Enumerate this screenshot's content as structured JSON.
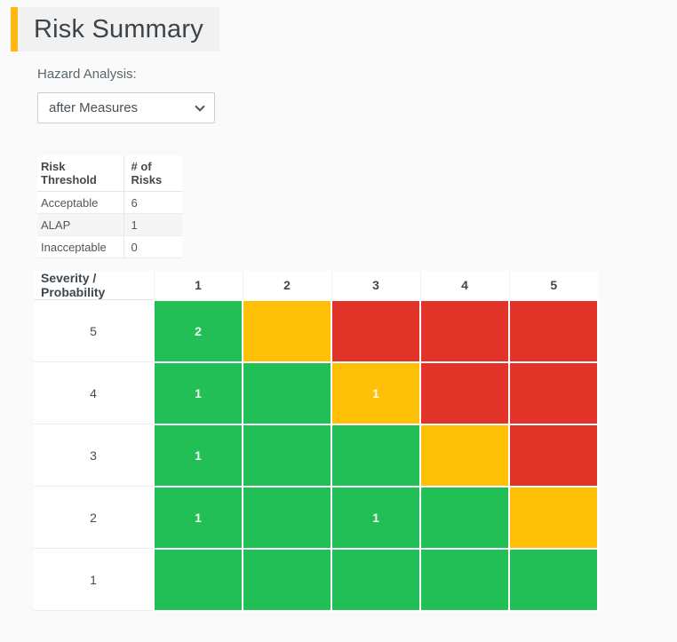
{
  "page": {
    "title": "Risk Summary",
    "accent_color": "#fdb813",
    "background_color": "#fafafa"
  },
  "hazard_analysis": {
    "label": "Hazard Analysis:",
    "selected_option": "after Measures"
  },
  "threshold_table": {
    "columns": {
      "threshold": "Risk Threshold",
      "count": "# of Risks"
    },
    "rows": [
      {
        "label": "Acceptable",
        "count": "6"
      },
      {
        "label": "ALAP",
        "count": "1"
      },
      {
        "label": "Inacceptable",
        "count": "0"
      }
    ]
  },
  "risk_matrix": {
    "corner_label": "Severity / Probability",
    "probability_labels": [
      "1",
      "2",
      "3",
      "4",
      "5"
    ],
    "severity_labels": [
      "5",
      "4",
      "3",
      "2",
      "1"
    ],
    "colors": {
      "green": "#21bf55",
      "yellow": "#ffc107",
      "red": "#e23328"
    },
    "cells": [
      [
        {
          "level": "green",
          "count": "2"
        },
        {
          "level": "yellow",
          "count": ""
        },
        {
          "level": "red",
          "count": ""
        },
        {
          "level": "red",
          "count": ""
        },
        {
          "level": "red",
          "count": ""
        }
      ],
      [
        {
          "level": "green",
          "count": "1"
        },
        {
          "level": "green",
          "count": ""
        },
        {
          "level": "yellow",
          "count": "1"
        },
        {
          "level": "red",
          "count": ""
        },
        {
          "level": "red",
          "count": ""
        }
      ],
      [
        {
          "level": "green",
          "count": "1"
        },
        {
          "level": "green",
          "count": ""
        },
        {
          "level": "green",
          "count": ""
        },
        {
          "level": "yellow",
          "count": ""
        },
        {
          "level": "red",
          "count": ""
        }
      ],
      [
        {
          "level": "green",
          "count": "1"
        },
        {
          "level": "green",
          "count": ""
        },
        {
          "level": "green",
          "count": "1"
        },
        {
          "level": "green",
          "count": ""
        },
        {
          "level": "yellow",
          "count": ""
        }
      ],
      [
        {
          "level": "green",
          "count": ""
        },
        {
          "level": "green",
          "count": ""
        },
        {
          "level": "green",
          "count": ""
        },
        {
          "level": "green",
          "count": ""
        },
        {
          "level": "green",
          "count": ""
        }
      ]
    ]
  }
}
